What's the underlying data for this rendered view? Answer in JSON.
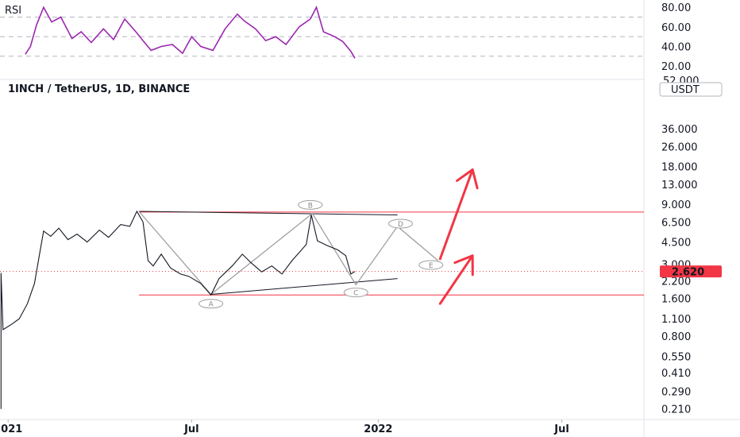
{
  "rsi_panel": {
    "label": "RSI",
    "ticks": [
      {
        "v": 80,
        "text": "80.00"
      },
      {
        "v": 60,
        "text": "60.00"
      },
      {
        "v": 40,
        "text": "40.00"
      },
      {
        "v": 20,
        "text": "20.00"
      }
    ],
    "levels": [
      70,
      50,
      30
    ],
    "color": "#9c27b0"
  },
  "main_panel": {
    "title": "1INCH / TetherUS, 1D, BINANCE",
    "currency_badge": "USDT",
    "cut_top_tick": "52.000",
    "price_ticks": [
      {
        "v": 36,
        "text": "36.000"
      },
      {
        "v": 26,
        "text": "26.000"
      },
      {
        "v": 18,
        "text": "18.000"
      },
      {
        "v": 13,
        "text": "13.000"
      },
      {
        "v": 9,
        "text": "9.000"
      },
      {
        "v": 6.5,
        "text": "6.500"
      },
      {
        "v": 4.5,
        "text": "4.500"
      },
      {
        "v": 3.0,
        "text": "3.000"
      },
      {
        "v": 2.2,
        "text": "2.200"
      },
      {
        "v": 1.6,
        "text": "1.600"
      },
      {
        "v": 1.1,
        "text": "1.100"
      },
      {
        "v": 0.8,
        "text": "0.800"
      },
      {
        "v": 0.55,
        "text": "0.550"
      },
      {
        "v": 0.41,
        "text": "0.410"
      },
      {
        "v": 0.29,
        "text": "0.290"
      },
      {
        "v": 0.21,
        "text": "0.210"
      }
    ],
    "last_price": {
      "v": 2.62,
      "text": "2.620",
      "color": "#f23645"
    },
    "time_ticks": [
      {
        "date": "2021-01-01",
        "text": "2021"
      },
      {
        "date": "2021-07-01",
        "text": "Jul"
      },
      {
        "date": "2022-01-01",
        "text": "2022"
      },
      {
        "date": "2022-07-01",
        "text": "Jul"
      }
    ]
  },
  "chart_data": {
    "type": "line",
    "title": "1INCH / TetherUS, 1D, BINANCE",
    "y_scale": "log",
    "ylim": [
      0.2,
      55
    ],
    "xlim": [
      "2020-12-24",
      "2022-09-20"
    ],
    "series": [
      {
        "values": [
          [
            "2020-12-25",
            0.21
          ],
          [
            "2020-12-25",
            2.55
          ],
          [
            "2020-12-27",
            0.9
          ],
          [
            "2021-01-05",
            1.0
          ],
          [
            "2021-01-12",
            1.1
          ],
          [
            "2021-01-20",
            1.45
          ],
          [
            "2021-01-27",
            2.1
          ],
          [
            "2021-02-01",
            3.6
          ],
          [
            "2021-02-05",
            5.5
          ],
          [
            "2021-02-12",
            5.0
          ],
          [
            "2021-02-20",
            5.8
          ],
          [
            "2021-03-01",
            4.7
          ],
          [
            "2021-03-10",
            5.2
          ],
          [
            "2021-03-20",
            4.5
          ],
          [
            "2021-04-01",
            5.6
          ],
          [
            "2021-04-10",
            4.9
          ],
          [
            "2021-04-22",
            6.2
          ],
          [
            "2021-05-01",
            6.0
          ],
          [
            "2021-05-08",
            7.9
          ],
          [
            "2021-05-14",
            6.5
          ],
          [
            "2021-05-19",
            3.2
          ],
          [
            "2021-05-24",
            2.9
          ],
          [
            "2021-06-01",
            3.6
          ],
          [
            "2021-06-10",
            2.8
          ],
          [
            "2021-06-20",
            2.5
          ],
          [
            "2021-06-28",
            2.4
          ],
          [
            "2021-07-10",
            2.1
          ],
          [
            "2021-07-20",
            1.7
          ],
          [
            "2021-07-28",
            2.3
          ],
          [
            "2021-08-10",
            2.9
          ],
          [
            "2021-08-20",
            3.6
          ],
          [
            "2021-08-28",
            3.1
          ],
          [
            "2021-09-08",
            2.6
          ],
          [
            "2021-09-18",
            2.9
          ],
          [
            "2021-09-28",
            2.5
          ],
          [
            "2021-10-08",
            3.2
          ],
          [
            "2021-10-22",
            4.3
          ],
          [
            "2021-10-27",
            7.4
          ],
          [
            "2021-11-02",
            4.6
          ],
          [
            "2021-11-12",
            4.2
          ],
          [
            "2021-11-22",
            3.9
          ],
          [
            "2021-11-30",
            3.5
          ],
          [
            "2021-12-05",
            2.5
          ],
          [
            "2021-12-09",
            2.62
          ]
        ]
      }
    ],
    "rsi": {
      "ylim": [
        12,
        85
      ],
      "values": [
        [
          "2021-01-18",
          32
        ],
        [
          "2021-01-23",
          40
        ],
        [
          "2021-01-29",
          62
        ],
        [
          "2021-02-05",
          80
        ],
        [
          "2021-02-13",
          65
        ],
        [
          "2021-02-22",
          70
        ],
        [
          "2021-03-05",
          48
        ],
        [
          "2021-03-14",
          55
        ],
        [
          "2021-03-24",
          44
        ],
        [
          "2021-04-05",
          58
        ],
        [
          "2021-04-15",
          47
        ],
        [
          "2021-04-26",
          68
        ],
        [
          "2021-05-07",
          55
        ],
        [
          "2021-05-14",
          46
        ],
        [
          "2021-05-22",
          36
        ],
        [
          "2021-06-01",
          40
        ],
        [
          "2021-06-12",
          42
        ],
        [
          "2021-06-22",
          33
        ],
        [
          "2021-07-01",
          50
        ],
        [
          "2021-07-10",
          40
        ],
        [
          "2021-07-22",
          36
        ],
        [
          "2021-08-03",
          58
        ],
        [
          "2021-08-15",
          73
        ],
        [
          "2021-08-22",
          66
        ],
        [
          "2021-09-02",
          58
        ],
        [
          "2021-09-12",
          46
        ],
        [
          "2021-09-22",
          50
        ],
        [
          "2021-10-02",
          42
        ],
        [
          "2021-10-15",
          60
        ],
        [
          "2021-10-26",
          68
        ],
        [
          "2021-11-01",
          80
        ],
        [
          "2021-11-08",
          55
        ],
        [
          "2021-11-19",
          50
        ],
        [
          "2021-11-27",
          45
        ],
        [
          "2021-12-05",
          35
        ],
        [
          "2021-12-09",
          28
        ]
      ]
    },
    "annotations": {
      "horizontal_levels": [
        {
          "v": 7.8,
          "color": "#f23645"
        },
        {
          "v": 1.7,
          "color": "#f23645"
        }
      ],
      "trendlines": [
        {
          "from": [
            "2021-05-10",
            7.9
          ],
          "to": [
            "2022-01-20",
            7.4
          ],
          "color": "#131722"
        },
        {
          "from": [
            "2021-07-20",
            1.72
          ],
          "to": [
            "2022-01-20",
            2.3
          ],
          "color": "#131722"
        }
      ],
      "wave_path": {
        "color": "#9e9e9e",
        "points": [
          [
            "2021-05-10",
            7.9
          ],
          [
            "2021-07-20",
            1.72
          ],
          [
            "2021-10-28",
            7.6
          ],
          [
            "2021-12-10",
            2.05
          ],
          [
            "2022-01-20",
            6.0
          ],
          [
            "2022-03-01",
            3.2
          ]
        ]
      },
      "wave_labels": [
        {
          "text": "A",
          "date": "2021-07-20",
          "v": 1.45
        },
        {
          "text": "B",
          "date": "2021-10-26",
          "v": 8.9
        },
        {
          "text": "C",
          "date": "2021-12-10",
          "v": 1.78
        },
        {
          "text": "D",
          "date": "2022-01-23",
          "v": 6.3
        },
        {
          "text": "E",
          "date": "2022-02-22",
          "v": 2.95
        }
      ],
      "arrows": [
        {
          "from": [
            "2022-03-03",
            3.3
          ],
          "to": [
            "2022-04-04",
            17
          ],
          "color": "#f23645"
        },
        {
          "from": [
            "2022-03-03",
            1.45
          ],
          "to": [
            "2022-04-04",
            3.5
          ],
          "color": "#f23645"
        }
      ]
    }
  }
}
